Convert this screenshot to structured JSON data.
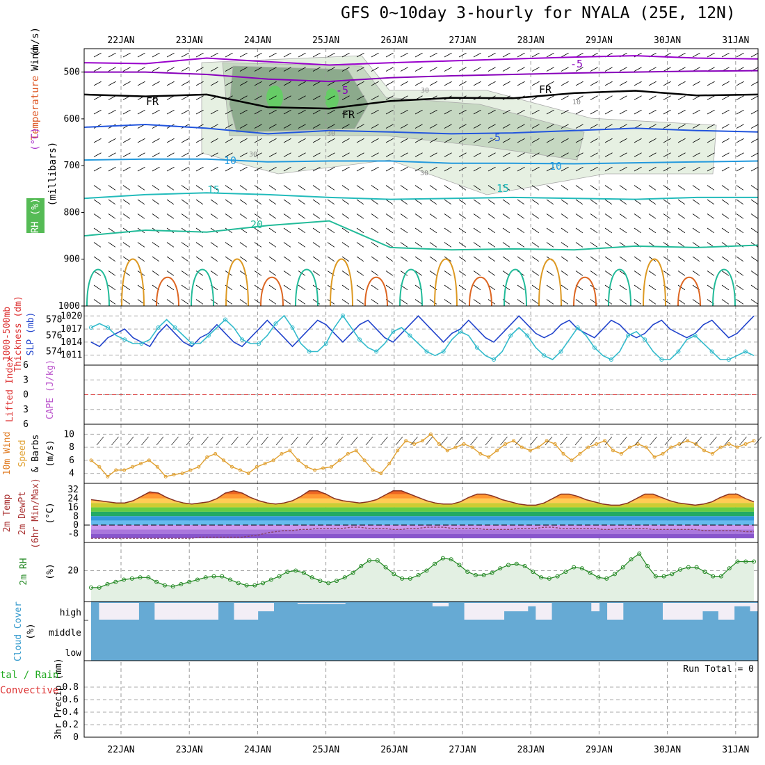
{
  "title": "GFS 0~10day 3-hourly for NYALA (25E, 12N)",
  "chart_data": [
    {
      "type": "contour",
      "panel": "upper-air",
      "y_axis_labels": [
        "Wind",
        "(m/s)",
        "Temperature",
        "(°C)",
        "RH",
        "(%)",
        "(millibars)"
      ],
      "ylim": [
        1000,
        450
      ],
      "yticks": [
        500,
        600,
        700,
        800,
        900,
        1000
      ],
      "x_dates": [
        "22JAN",
        "23JAN",
        "24JAN",
        "25JAN",
        "26JAN",
        "27JAN",
        "28JAN",
        "29JAN",
        "30JAN",
        "31JAN"
      ],
      "isotherm_labels": [
        "-5",
        "-5",
        "FR",
        "FR",
        "FR",
        "-5",
        "10",
        "10",
        "15",
        "15",
        "20",
        "30",
        "30",
        "30",
        "30",
        "10"
      ],
      "isotherms": [
        {
          "label": "-5",
          "color": "#9900cc",
          "p": [
            480,
            482,
            470,
            478,
            485,
            480,
            476,
            472,
            468,
            465,
            470,
            472
          ]
        },
        {
          "label": "-5",
          "color": "#8800bb",
          "p": [
            500,
            500,
            505,
            515,
            520,
            512,
            508,
            505,
            502,
            500,
            498,
            497
          ]
        },
        {
          "label": "FR",
          "color": "#000000",
          "p": [
            548,
            552,
            548,
            575,
            578,
            562,
            555,
            556,
            545,
            540,
            550,
            548
          ]
        },
        {
          "label": "",
          "color": "#2255dd",
          "p": [
            618,
            612,
            620,
            632,
            625,
            628,
            632,
            630,
            625,
            620,
            625,
            628
          ]
        },
        {
          "label": "10",
          "color": "#2299dd",
          "p": [
            688,
            686,
            686,
            692,
            690,
            690,
            695,
            695,
            696,
            694,
            692,
            690
          ]
        },
        {
          "label": "15",
          "color": "#22bbbb",
          "p": [
            770,
            762,
            758,
            762,
            768,
            772,
            770,
            768,
            770,
            772,
            768,
            768
          ]
        },
        {
          "label": "20",
          "color": "#22bb99",
          "p": [
            850,
            838,
            842,
            828,
            818,
            875,
            880,
            878,
            880,
            872,
            875,
            870
          ]
        }
      ],
      "rh_levels": [
        "30",
        "50",
        "70",
        "90"
      ],
      "rh_colors": [
        "#e6f0e2",
        "#c6d8c2",
        "#8caa8c",
        "#66cc66"
      ]
    },
    {
      "type": "line",
      "panel": "thickness-slp",
      "ylabels": [
        "1000-500mb",
        "Thickness (dm)",
        "SLP (mb)"
      ],
      "y1_ticks": [
        574,
        576,
        578
      ],
      "y2_ticks": [
        1011,
        1014,
        1017,
        1020
      ],
      "series": [
        {
          "color": "#2244cc",
          "values": [
            1014,
            1013,
            1015,
            1016,
            1017,
            1015,
            1014,
            1013,
            1016,
            1018,
            1016,
            1014,
            1013,
            1015,
            1016,
            1018,
            1016,
            1014,
            1013,
            1015,
            1017,
            1019,
            1017,
            1015,
            1013,
            1015,
            1017,
            1019,
            1018,
            1016,
            1014,
            1016,
            1018,
            1019,
            1017,
            1015,
            1014,
            1016,
            1018,
            1020,
            1018,
            1016,
            1014,
            1016,
            1017,
            1019,
            1017,
            1015,
            1014,
            1016,
            1018,
            1020,
            1018,
            1016,
            1015,
            1016,
            1018,
            1019,
            1017,
            1016,
            1015,
            1017,
            1019,
            1018,
            1016,
            1015,
            1016,
            1018,
            1019,
            1017,
            1016,
            1015,
            1016,
            1018,
            1019,
            1017,
            1015,
            1016,
            1018,
            1020
          ]
        },
        {
          "color": "#33bbcc",
          "values": [
            577,
            577.5,
            577,
            576,
            575.5,
            575,
            575,
            575.5,
            577,
            578,
            577,
            576,
            575,
            575,
            576,
            577,
            578,
            577,
            575.5,
            575,
            575,
            576,
            577.5,
            578.5,
            577,
            575,
            574,
            574,
            575,
            577,
            578.5,
            577,
            575.5,
            574.5,
            574,
            575,
            576.5,
            577,
            576,
            575,
            574,
            573.5,
            574,
            575.5,
            576.5,
            576,
            574.5,
            573.5,
            573,
            574,
            576,
            577,
            576,
            574.5,
            573.5,
            573,
            574,
            575.5,
            577,
            576,
            574.5,
            573.5,
            573,
            574,
            576,
            576.5,
            575.5,
            574,
            573,
            573,
            574,
            575.5,
            576,
            575,
            574,
            573,
            573,
            573.5,
            574,
            573.5
          ]
        }
      ]
    },
    {
      "type": "line",
      "panel": "stability",
      "ylabels": [
        "Lifted Index",
        "CAPE (J/kg)"
      ],
      "yticks": [
        -6,
        -3,
        0,
        3,
        6
      ],
      "series": [
        {
          "name": "",
          "color": "#dd4444",
          "values": [
            0
          ]
        }
      ]
    },
    {
      "type": "line",
      "panel": "10m-wind",
      "ylabels": [
        "10m Wind",
        "Speed",
        "& Barbs",
        "(m/s)"
      ],
      "yticks": [
        4,
        6,
        8,
        10
      ],
      "series": [
        {
          "color": "#e0a030",
          "values": [
            6,
            5,
            3.5,
            4.5,
            4.5,
            5,
            5.5,
            6,
            5,
            3.5,
            3.8,
            4,
            4.5,
            5,
            6.5,
            7,
            6,
            5,
            4.5,
            4,
            5,
            5.5,
            6,
            7,
            7.5,
            6,
            5,
            4.5,
            4.8,
            5,
            6,
            7,
            7.5,
            6,
            4.5,
            4,
            5.5,
            7.5,
            9,
            8.5,
            9,
            10,
            8.5,
            7.5,
            8,
            8.5,
            8,
            7,
            6.5,
            7.5,
            8.5,
            9,
            8,
            7.5,
            8,
            9,
            8.5,
            7,
            6,
            7,
            8,
            8.5,
            9,
            7.5,
            7,
            8,
            8.5,
            8,
            6.5,
            7,
            8,
            8.5,
            9,
            8.5,
            7.5,
            7,
            8,
            8.5,
            8,
            8.5,
            9
          ]
        }
      ]
    },
    {
      "type": "area",
      "panel": "2m-temp",
      "ylabels": [
        "2m Temp",
        "2m DewPt",
        "(6hr Min/Max)",
        "(°C)"
      ],
      "yticks": [
        32,
        24,
        16,
        8,
        0,
        -8
      ],
      "series": [
        {
          "name": "temp",
          "values": [
            23,
            22,
            21,
            20,
            20,
            22,
            26,
            30,
            29,
            25,
            22,
            20,
            19,
            20,
            21,
            24,
            29,
            31,
            29,
            25,
            22,
            20,
            19,
            20,
            22,
            26,
            31,
            31,
            28,
            24,
            22,
            21,
            20,
            21,
            23,
            27,
            31,
            31,
            28,
            25,
            22,
            20,
            19,
            19,
            21,
            25,
            28,
            28,
            26,
            23,
            21,
            19,
            18,
            18,
            20,
            24,
            28,
            28,
            26,
            23,
            21,
            19,
            18,
            18,
            20,
            24,
            28,
            28,
            25,
            22,
            20,
            19,
            18,
            19,
            21,
            25,
            28,
            28,
            24,
            21
          ]
        },
        {
          "name": "dewpoint",
          "values": [
            -12,
            -12,
            -12,
            -12,
            -12,
            -12,
            -12,
            -12,
            -12,
            -12,
            -12,
            -12,
            -12,
            -11,
            -11,
            -11,
            -11,
            -11,
            -11,
            -10,
            -9,
            -7,
            -6,
            -5,
            -5,
            -4,
            -4,
            -3,
            -3,
            -3,
            -3,
            -2,
            -2,
            -3,
            -3,
            -3,
            -4,
            -4,
            -3,
            -3,
            -2,
            -2,
            -2,
            -3,
            -3,
            -3,
            -3,
            -4,
            -4,
            -4,
            -4,
            -3,
            -3,
            -3,
            -2,
            -2,
            -3,
            -3,
            -3,
            -3,
            -3,
            -4,
            -4,
            -3,
            -3,
            -3,
            -3,
            -4,
            -4,
            -4,
            -4,
            -4,
            -4,
            -5,
            -5,
            -5,
            -5,
            -5,
            -6,
            -6
          ]
        }
      ]
    },
    {
      "type": "area",
      "panel": "2m-rh",
      "ylabels": [
        "2m RH",
        "(%)"
      ],
      "yticks": [
        20
      ],
      "series": [
        {
          "color": "#228822",
          "values": [
            5,
            5,
            8,
            10,
            12,
            13,
            14,
            14,
            10,
            7,
            6,
            8,
            10,
            12,
            14,
            15,
            15,
            12,
            9,
            7,
            7,
            9,
            12,
            15,
            19,
            20,
            18,
            14,
            11,
            9,
            11,
            14,
            18,
            24,
            29,
            29,
            23,
            17,
            13,
            13,
            16,
            20,
            26,
            31,
            30,
            25,
            19,
            16,
            16,
            18,
            22,
            25,
            26,
            24,
            19,
            14,
            13,
            15,
            19,
            23,
            22,
            18,
            14,
            13,
            17,
            23,
            30,
            35,
            24,
            15,
            15,
            17,
            21,
            23,
            23,
            19,
            15,
            15,
            22,
            28,
            28,
            28
          ]
        }
      ]
    },
    {
      "type": "heatmap",
      "panel": "cloud-cover",
      "ylabels": [
        "Cloud Cover",
        "(%)"
      ],
      "row_labels": [
        "high",
        "middle",
        "low"
      ],
      "high_cover_pct": [
        100,
        0,
        0,
        0,
        0,
        0,
        100,
        100,
        0,
        0,
        0,
        0,
        0,
        0,
        0,
        0,
        100,
        100,
        0,
        0,
        0,
        50,
        50,
        100,
        100,
        100,
        95,
        95,
        95,
        95,
        95,
        95,
        100,
        100,
        100,
        100,
        100,
        100,
        100,
        100,
        100,
        100,
        100,
        80,
        80,
        100,
        100,
        0,
        0,
        0,
        0,
        0,
        50,
        50,
        50,
        80,
        0,
        0,
        100,
        100,
        100,
        100,
        100,
        50,
        100,
        0,
        0,
        100,
        100,
        100,
        100,
        100,
        0,
        0,
        0,
        0,
        0,
        50,
        50,
        0,
        0,
        80,
        80,
        50
      ]
    },
    {
      "type": "bar",
      "panel": "precip",
      "ylabels": [
        "3hr Precip (mm)",
        "Total / Rain",
        "Convective"
      ],
      "yticks": [
        0,
        0.2,
        0.4,
        0.6,
        0.8
      ],
      "ylim": [
        0,
        1
      ],
      "run_total": "Run Total = 0",
      "values": [
        0
      ]
    }
  ]
}
